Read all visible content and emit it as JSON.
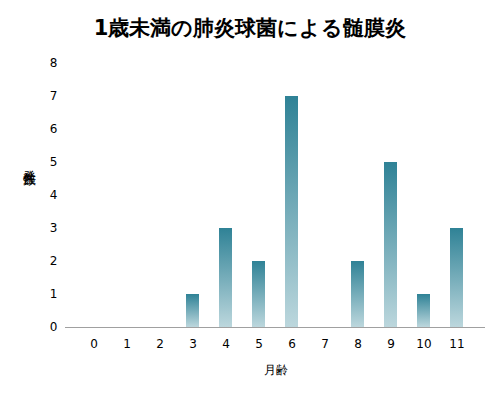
{
  "chart_data": {
    "type": "bar",
    "title": "1歳未満の肺炎球菌による髄膜炎",
    "x_label": "月齢",
    "y_label": "発生件数",
    "categories": [
      "0",
      "1",
      "2",
      "3",
      "4",
      "5",
      "6",
      "7",
      "8",
      "9",
      "10",
      "11"
    ],
    "values": [
      0,
      0,
      0,
      1,
      3,
      2,
      7,
      0,
      2,
      5,
      1,
      3
    ],
    "color": "#2f8296",
    "ylim": [
      0,
      8
    ],
    "yticks": [
      0,
      1,
      2,
      3,
      4,
      5,
      6,
      7,
      8
    ],
    "grid": false
  }
}
